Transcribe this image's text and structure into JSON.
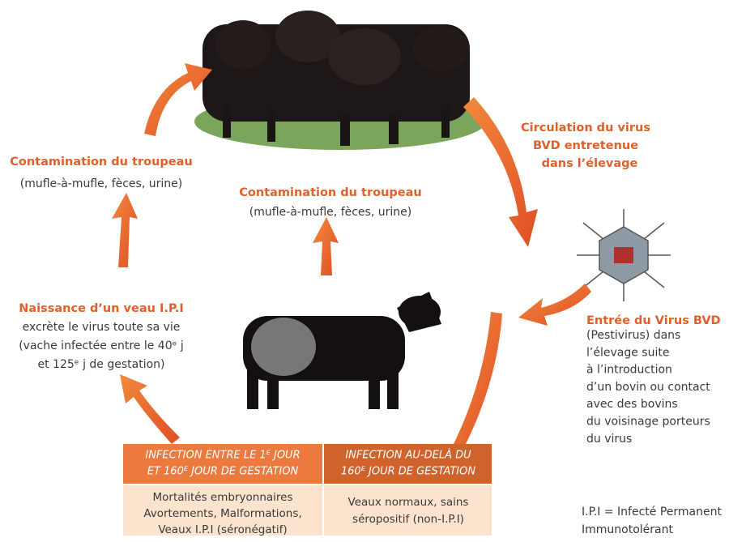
{
  "cycle": {
    "herd_contamination_left": {
      "title": "Contamination du troupeau",
      "text": "(mufle-à-mufle, fèces, urine)"
    },
    "herd_contamination_center": {
      "title": "Contamination du troupeau",
      "text": "(mufle-à-mufle, fèces, urine)"
    },
    "circulation": {
      "lines": [
        "Circulation du virus",
        "BVD entretenue",
        "dans l’élevage"
      ]
    },
    "birth": {
      "title": "Naissance d’un veau I.P.I",
      "lines": [
        "excrète le virus toute sa vie",
        "(vache infectée entre le 40ᵉ j",
        "et 125ᵉ j de gestation)"
      ]
    },
    "entry": {
      "title": "Entrée du Virus BVD",
      "lines": [
        "(Pestivirus) dans",
        "l’élevage suite",
        "à l’introduction",
        "d’un bovin ou contact",
        "avec des bovins",
        "du voisinage porteurs",
        "du virus"
      ]
    }
  },
  "table": {
    "headers": [
      [
        "INFECTION ENTRE LE 1ᴱ JOUR",
        "ET 160ᴱ JOUR DE GESTATION"
      ],
      [
        "INFECTION AU-DELÀ DU",
        "160ᴱ JOUR DE GESTATION"
      ]
    ],
    "rows": [
      [
        [
          "Mortalités embryonnaires",
          "Avortements, Malformations,",
          "Veaux I.P.I (séronégatif)"
        ],
        [
          "Veaux normaux, sains",
          "séropositif (non-I.P.I)"
        ]
      ]
    ]
  },
  "footnote": {
    "lines": [
      "I.P.I = Infecté Permanent",
      "Immunotolérant"
    ]
  }
}
